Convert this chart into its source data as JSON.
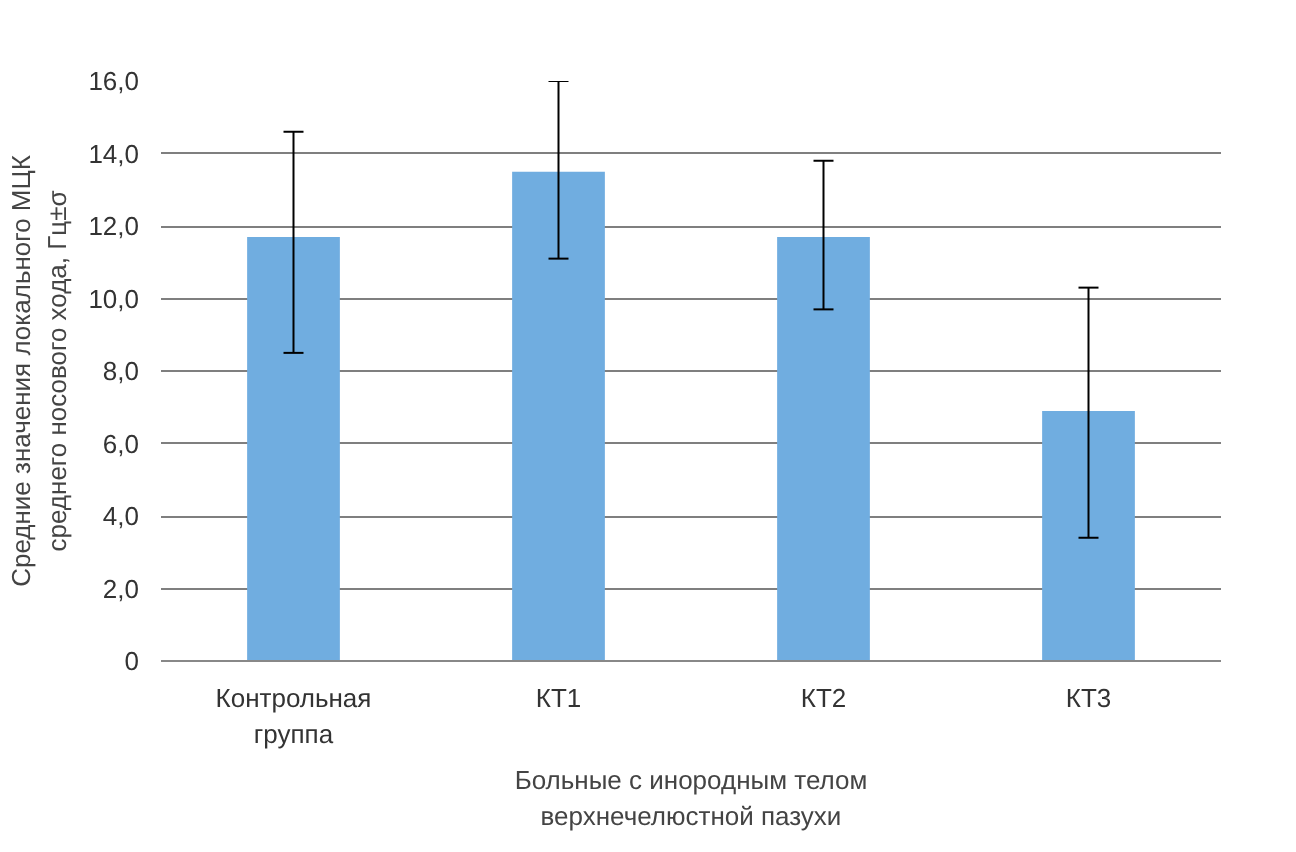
{
  "chart_data": {
    "type": "bar",
    "categories": [
      "Контрольная\nгруппа",
      "КТ1",
      "КТ2",
      "КТ3"
    ],
    "values": [
      11.7,
      13.5,
      11.7,
      6.9
    ],
    "errors": [
      [
        8.5,
        14.6
      ],
      [
        11.1,
        16.0
      ],
      [
        9.7,
        13.8
      ],
      [
        3.4,
        10.3
      ]
    ],
    "color": "#70ade0",
    "xlabel": "Больные с инородным телом\nверхнечелюстной пазухи",
    "ylabel": "Средние значения локального МЦК\nсреднего носового хода, Гц±σ",
    "ylim": [
      0,
      16
    ],
    "yticks": [
      {
        "value": 0,
        "label": "0"
      },
      {
        "value": 2,
        "label": "2,0"
      },
      {
        "value": 4,
        "label": "4,0"
      },
      {
        "value": 6,
        "label": "6,0"
      },
      {
        "value": 8,
        "label": "8,0"
      },
      {
        "value": 10,
        "label": "10,0"
      },
      {
        "value": 12,
        "label": "12,0"
      },
      {
        "value": 14,
        "label": "14,0"
      },
      {
        "value": 16,
        "label": "16,0"
      }
    ],
    "grid": "y"
  }
}
